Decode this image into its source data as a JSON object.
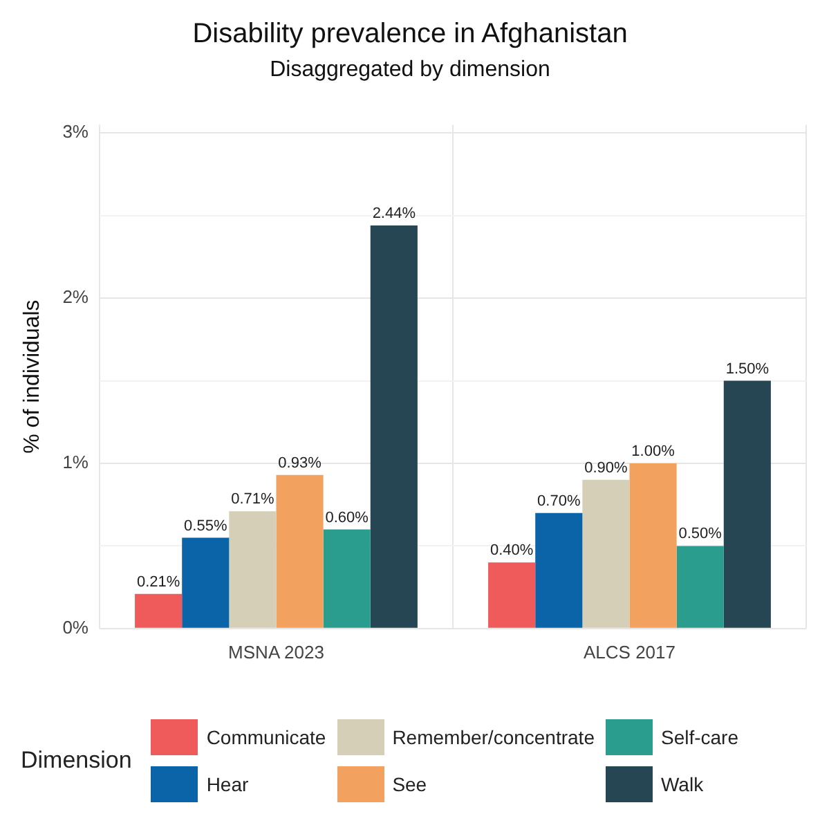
{
  "chart_data": {
    "type": "bar",
    "title": "Disability prevalence in Afghanistan",
    "subtitle": "Disaggregated by dimension",
    "ylabel": "% of individuals",
    "legend_title": "Dimension",
    "categories": [
      "MSNA 2023",
      "ALCS 2017"
    ],
    "series": [
      {
        "name": "Communicate",
        "color": "#ef5b5b",
        "values": [
          0.21,
          0.4
        ],
        "value_labels": [
          "0.21%",
          "0.40%"
        ]
      },
      {
        "name": "Hear",
        "color": "#0b63a8",
        "values": [
          0.55,
          0.7
        ],
        "value_labels": [
          "0.55%",
          "0.70%"
        ]
      },
      {
        "name": "Remember/concentrate",
        "color": "#d6cfb8",
        "values": [
          0.71,
          0.9
        ],
        "value_labels": [
          "0.71%",
          "0.90%"
        ]
      },
      {
        "name": "See",
        "color": "#f2a25e",
        "values": [
          0.93,
          1.0
        ],
        "value_labels": [
          "0.93%",
          "1.00%"
        ]
      },
      {
        "name": "Self-care",
        "color": "#2a9d8f",
        "values": [
          0.6,
          0.5
        ],
        "value_labels": [
          "0.60%",
          "0.50%"
        ]
      },
      {
        "name": "Walk",
        "color": "#264653",
        "values": [
          2.44,
          1.5
        ],
        "value_labels": [
          "2.44%",
          "1.50%"
        ]
      }
    ],
    "ylim": [
      0,
      3.05
    ],
    "yticks": [
      {
        "value": 0,
        "label": "0%"
      },
      {
        "value": 0.5,
        "label": null
      },
      {
        "value": 1,
        "label": "1%"
      },
      {
        "value": 1.5,
        "label": null
      },
      {
        "value": 2,
        "label": "2%"
      },
      {
        "value": 2.5,
        "label": null
      },
      {
        "value": 3,
        "label": "3%"
      }
    ],
    "grid": true,
    "legend": "bottom"
  }
}
